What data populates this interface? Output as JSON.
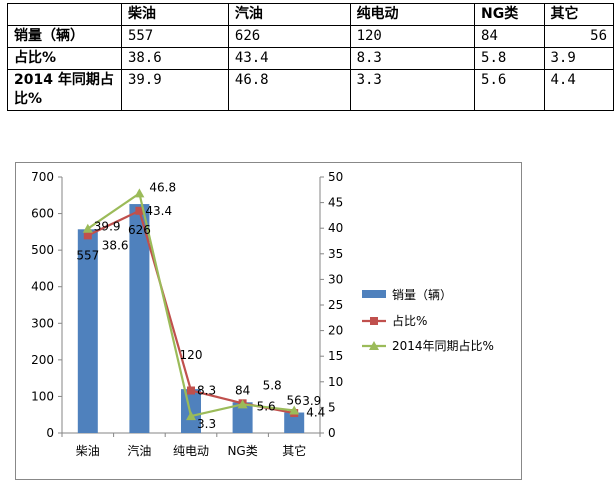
{
  "table": {
    "headers": [
      "",
      "柴油",
      "汽油",
      "纯电动",
      "NG类",
      "其它"
    ],
    "rows": [
      {
        "label": "销量（辆）",
        "cells": [
          "557",
          "626",
          "120",
          "84",
          "56"
        ]
      },
      {
        "label": "占比%",
        "cells": [
          "38.6",
          "43.4",
          "8.3",
          "5.8",
          "3.9"
        ]
      },
      {
        "label": "2014 年同期占比%",
        "cells": [
          "39.9",
          "46.8",
          "3.3",
          "5.6",
          "4.4"
        ]
      }
    ]
  },
  "chart_data": {
    "type": "bar",
    "categories": [
      "柴油",
      "汽油",
      "纯电动",
      "NG类",
      "其它"
    ],
    "series": [
      {
        "name": "销量（辆）",
        "kind": "bar",
        "axis": "left",
        "values": [
          557,
          626,
          120,
          84,
          56
        ],
        "color": "#4f81bd"
      },
      {
        "name": "占比%",
        "kind": "line",
        "axis": "right",
        "values": [
          38.6,
          43.4,
          8.3,
          5.8,
          3.9
        ],
        "color": "#c0504d"
      },
      {
        "name": "2014年同期占比%",
        "kind": "line",
        "axis": "right",
        "values": [
          39.9,
          46.8,
          3.3,
          5.6,
          4.4
        ],
        "color": "#9bbb59"
      }
    ],
    "ylim_left": [
      0,
      700
    ],
    "yticks_left": [
      "0",
      "100",
      "200",
      "300",
      "400",
      "500",
      "600",
      "700"
    ],
    "ylim_right": [
      0,
      50
    ],
    "yticks_right": [
      "0",
      "5",
      "10",
      "15",
      "20",
      "25",
      "30",
      "35",
      "40",
      "45",
      "50"
    ],
    "legend_position": "right",
    "grid": false
  }
}
